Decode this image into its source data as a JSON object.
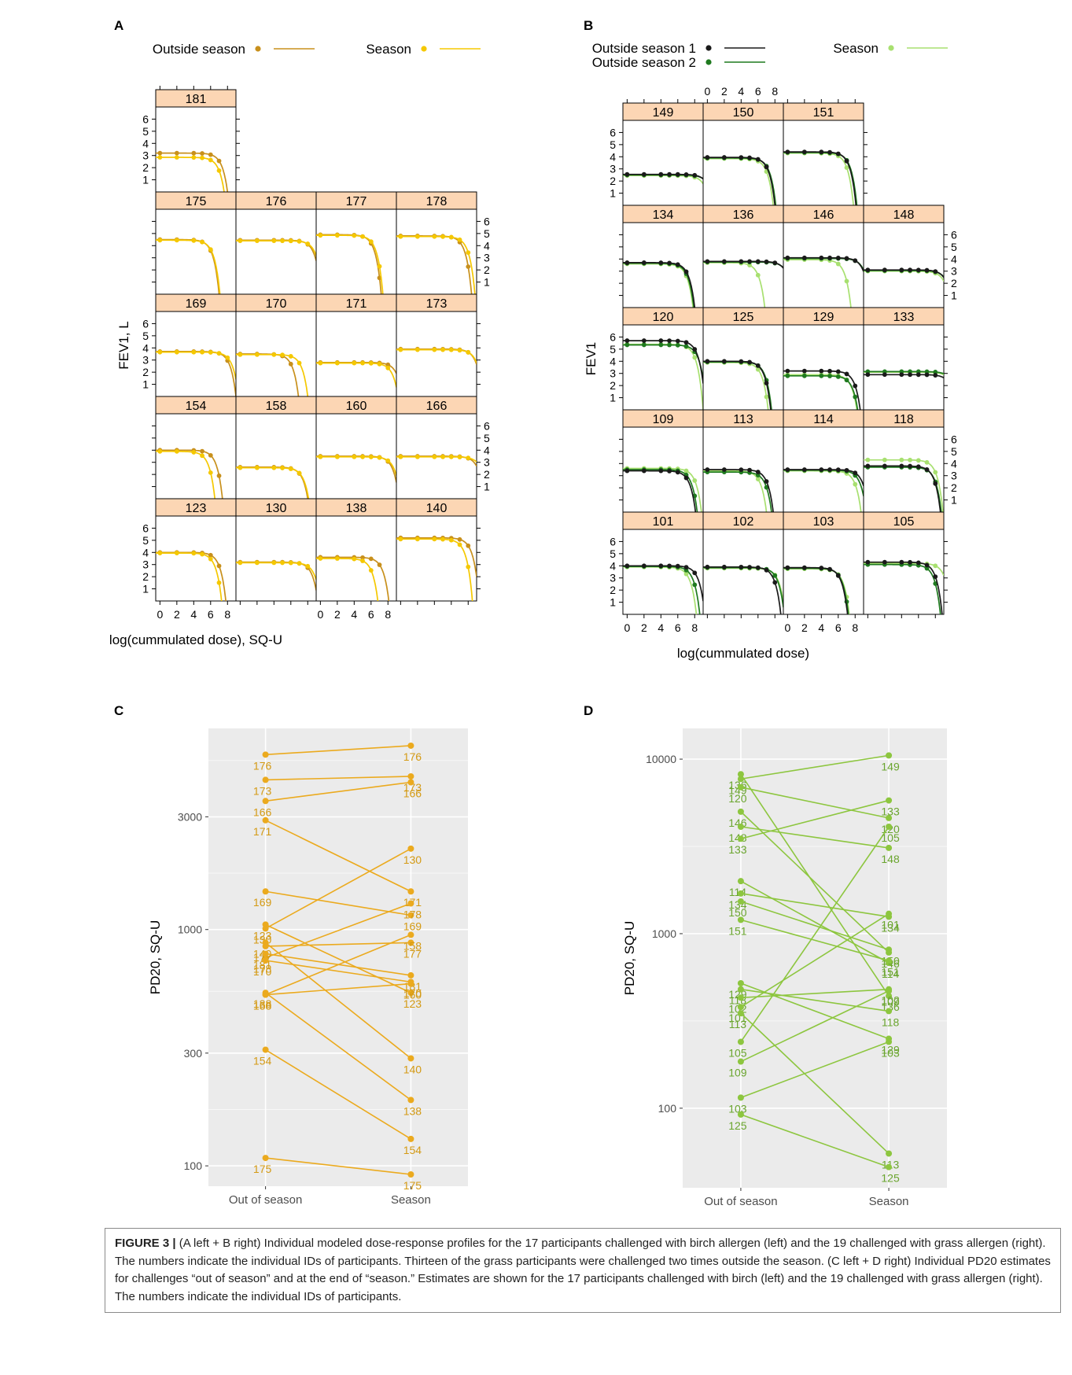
{
  "panels": {
    "A": {
      "letter": "A",
      "legend": [
        {
          "label": "Outside season",
          "color": "#c8901c"
        },
        {
          "label": "Season",
          "color": "#f5c800"
        }
      ],
      "ylabel": "FEV1, L",
      "xlabel": "log(cummulated dose), SQ-U",
      "y_ticks": [
        "1",
        "2",
        "3",
        "4",
        "5",
        "6"
      ],
      "x_ticks": [
        "0",
        "2",
        "4",
        "6",
        "8"
      ],
      "rows": [
        [
          "181"
        ],
        [
          "175",
          "176",
          "177",
          "178"
        ],
        [
          "169",
          "170",
          "171",
          "173"
        ],
        [
          "154",
          "158",
          "160",
          "166"
        ],
        [
          "123",
          "130",
          "138",
          "140"
        ]
      ]
    },
    "B": {
      "letter": "B",
      "legend": [
        {
          "label": "Outside season 1",
          "color": "#1a1a1a"
        },
        {
          "label": "Outside season 2",
          "color": "#1f7a1f"
        },
        {
          "label": "Season",
          "color": "#a8e070"
        }
      ],
      "ylabel": "FEV1",
      "xlabel": "log(cummulated dose)",
      "y_ticks": [
        "1",
        "2",
        "3",
        "4",
        "5",
        "6"
      ],
      "x_ticks": [
        "0",
        "2",
        "4",
        "6",
        "8"
      ],
      "rows": [
        [
          "149",
          "150",
          "151"
        ],
        [
          "134",
          "136",
          "146",
          "148"
        ],
        [
          "120",
          "125",
          "129",
          "133"
        ],
        [
          "109",
          "113",
          "114",
          "118"
        ],
        [
          "101",
          "102",
          "103",
          "105"
        ]
      ]
    },
    "C": {
      "letter": "C"
    },
    "D": {
      "letter": "D"
    }
  },
  "chart_data": [
    {
      "panel": "A",
      "type": "line",
      "title": "",
      "xlabel": "log(cummulated dose), SQ-U",
      "ylabel": "FEV1, L",
      "xlim": [
        -0.5,
        9
      ],
      "ylim": [
        0,
        7
      ],
      "series_names": [
        "Outside season",
        "Season"
      ],
      "facets": [
        {
          "id": "181",
          "out": {
            "base": 3.2,
            "end": 8.0
          },
          "season": {
            "base": 2.85,
            "end": 7.6
          }
        },
        {
          "id": "175",
          "out": {
            "base": 4.5,
            "end": 7.0
          },
          "season": {
            "base": 4.45,
            "end": 7.1
          }
        },
        {
          "id": "176",
          "out": {
            "base": 4.45,
            "end": 9.6
          },
          "season": {
            "base": 4.4,
            "end": 9.8
          }
        },
        {
          "id": "177",
          "out": {
            "base": 4.9,
            "end": 7.2
          },
          "season": {
            "base": 4.85,
            "end": 7.4
          }
        },
        {
          "id": "178",
          "out": {
            "base": 4.8,
            "end": 8.4
          },
          "season": {
            "base": 4.75,
            "end": 8.8
          }
        },
        {
          "id": "169",
          "out": {
            "base": 3.7,
            "end": 9.0
          },
          "season": {
            "base": 3.65,
            "end": 9.3
          }
        },
        {
          "id": "170",
          "out": {
            "base": 3.5,
            "end": 6.9
          },
          "season": {
            "base": 3.45,
            "end": 8.0
          }
        },
        {
          "id": "171",
          "out": {
            "base": 2.8,
            "end": 9.7
          },
          "season": {
            "base": 2.75,
            "end": 9.2
          }
        },
        {
          "id": "173",
          "out": {
            "base": 3.9,
            "end": 9.7
          },
          "season": {
            "base": 3.85,
            "end": 9.8
          }
        },
        {
          "id": "154",
          "out": {
            "base": 4.0,
            "end": 7.4
          },
          "season": {
            "base": 3.9,
            "end": 6.5
          }
        },
        {
          "id": "158",
          "out": {
            "base": 2.6,
            "end": 8.0
          },
          "season": {
            "base": 2.55,
            "end": 8.1
          }
        },
        {
          "id": "160",
          "out": {
            "base": 3.5,
            "end": 9.3
          },
          "season": {
            "base": 3.45,
            "end": 9.5
          }
        },
        {
          "id": "166",
          "out": {
            "base": 3.5,
            "end": 9.9
          },
          "season": {
            "base": 3.45,
            "end": 10.3
          }
        },
        {
          "id": "123",
          "out": {
            "base": 4.0,
            "end": 7.8
          },
          "season": {
            "base": 3.95,
            "end": 7.3
          }
        },
        {
          "id": "130",
          "out": {
            "base": 3.2,
            "end": 9.2
          },
          "season": {
            "base": 3.15,
            "end": 9.5
          }
        },
        {
          "id": "138",
          "out": {
            "base": 3.6,
            "end": 8.1
          },
          "season": {
            "base": 3.5,
            "end": 6.8
          }
        },
        {
          "id": "140",
          "out": {
            "base": 5.2,
            "end": 9.3
          },
          "season": {
            "base": 5.1,
            "end": 8.5
          }
        }
      ]
    },
    {
      "panel": "B",
      "type": "line",
      "title": "",
      "xlabel": "log(cummulated dose)",
      "ylabel": "FEV1",
      "xlim": [
        -0.5,
        9
      ],
      "ylim": [
        0,
        7
      ],
      "series_names": [
        "Outside season 1",
        "Outside season 2",
        "Season"
      ],
      "facets": [
        {
          "id": "149",
          "out1": {
            "base": 2.55,
            "end": 10.2
          },
          "out2": {
            "base": 2.5,
            "end": 10.3
          },
          "season": {
            "base": 2.45,
            "end": 9.8
          }
        },
        {
          "id": "150",
          "out1": {
            "base": 3.95,
            "end": 8.0
          },
          "out2": {
            "base": 3.9,
            "end": 8.1
          },
          "season": {
            "base": 3.85,
            "end": 7.8
          }
        },
        {
          "id": "151",
          "out1": {
            "base": 4.4,
            "end": 8.1
          },
          "out2": {
            "base": 4.35,
            "end": 8.2
          },
          "season": {
            "base": 4.3,
            "end": 7.8
          }
        },
        {
          "id": "134",
          "out1": {
            "base": 3.7,
            "end": 8.0
          },
          "out2": {
            "base": 3.65,
            "end": 7.9
          },
          "season": {
            "base": 3.6,
            "end": 7.8
          }
        },
        {
          "id": "136",
          "out1": {
            "base": 3.8,
            "end": 10.2
          },
          "out2": {
            "base": 3.75,
            "end": 10.3
          },
          "season": {
            "base": 3.7,
            "end": 6.8
          }
        },
        {
          "id": "146",
          "out1": {
            "base": 4.1,
            "end": 9.8
          },
          "out2": {
            "base": 4.05,
            "end": 9.9
          },
          "season": {
            "base": 3.95,
            "end": 7.5
          }
        },
        {
          "id": "148",
          "out1": {
            "base": 3.1,
            "end": 10.0
          },
          "out2": {
            "base": 3.05,
            "end": 10.1
          },
          "season": {
            "base": 3.0,
            "end": 9.8
          }
        },
        {
          "id": "120",
          "out1": {
            "base": 5.7,
            "end": 9.3
          },
          "out2": {
            "base": 5.35,
            "end": 9.4
          },
          "season": {
            "base": 5.4,
            "end": 9.0
          }
        },
        {
          "id": "125",
          "out1": {
            "base": 4.0,
            "end": 7.5
          },
          "out2": {
            "base": 3.95,
            "end": 7.6
          },
          "season": {
            "base": 3.9,
            "end": 7.2
          }
        },
        {
          "id": "129",
          "out1": {
            "base": 3.2,
            "end": 8.6
          },
          "out2": {
            "base": 2.8,
            "end": 8.3
          },
          "season": {
            "base": 2.9,
            "end": 8.2
          }
        },
        {
          "id": "133",
          "out1": {
            "base": 2.9,
            "end": 10.5
          },
          "out2": {
            "base": 3.15,
            "end": 10.8
          },
          "season": {
            "base": 3.1,
            "end": 10.7
          }
        },
        {
          "id": "109",
          "out1": {
            "base": 3.4,
            "end": 8.1
          },
          "out2": {
            "base": 3.5,
            "end": 8.3
          },
          "season": {
            "base": 3.6,
            "end": 8.8
          }
        },
        {
          "id": "113",
          "out1": {
            "base": 3.5,
            "end": 7.8
          },
          "out2": {
            "base": 3.3,
            "end": 7.6
          },
          "season": {
            "base": 3.4,
            "end": 7.0
          }
        },
        {
          "id": "114",
          "out1": {
            "base": 3.5,
            "end": 9.6
          },
          "out2": {
            "base": 3.45,
            "end": 9.3
          },
          "season": {
            "base": 3.4,
            "end": 8.7
          }
        },
        {
          "id": "118",
          "out1": {
            "base": 3.8,
            "end": 8.6
          },
          "out2": {
            "base": 3.7,
            "end": 8.7
          },
          "season": {
            "base": 4.3,
            "end": 8.9
          }
        },
        {
          "id": "101",
          "out1": {
            "base": 4.0,
            "end": 9.2
          },
          "out2": {
            "base": 3.95,
            "end": 8.6
          },
          "season": {
            "base": 3.9,
            "end": 8.2
          }
        },
        {
          "id": "102",
          "out1": {
            "base": 3.9,
            "end": 8.7
          },
          "out2": {
            "base": 3.85,
            "end": 9.1
          },
          "season": {
            "base": 3.8,
            "end": 9.2
          }
        },
        {
          "id": "103",
          "out1": {
            "base": 3.85,
            "end": 7.1
          },
          "out2": {
            "base": 3.8,
            "end": 7.2
          },
          "season": {
            "base": 3.75,
            "end": 7.3
          }
        },
        {
          "id": "105",
          "out1": {
            "base": 4.3,
            "end": 8.8
          },
          "out2": {
            "base": 4.1,
            "end": 8.6
          },
          "season": {
            "base": 4.2,
            "end": 9.9
          }
        }
      ]
    },
    {
      "panel": "C",
      "type": "line",
      "title": "",
      "xlabel": "",
      "ylabel": "PD20, SQ-U",
      "categories": [
        "Out of season",
        "Season"
      ],
      "y_scale": "log",
      "ylim": [
        82,
        7100
      ],
      "y_ticks": [
        100,
        300,
        1000,
        3000
      ],
      "color": "#ebaa1e",
      "subjects": [
        {
          "id": "176",
          "out": 5500,
          "season": 6000
        },
        {
          "id": "173",
          "out": 4300,
          "season": 4450
        },
        {
          "id": "166",
          "out": 3500,
          "season": 4200
        },
        {
          "id": "171",
          "out": 2900,
          "season": 1450
        },
        {
          "id": "130",
          "out": 1010,
          "season": 2200
        },
        {
          "id": "169",
          "out": 1450,
          "season": 1150
        },
        {
          "id": "123",
          "out": 1050,
          "season": 540
        },
        {
          "id": "178",
          "out": 760,
          "season": 1290
        },
        {
          "id": "177",
          "out": 850,
          "season": 880
        },
        {
          "id": "140",
          "out": 880,
          "season": 285
        },
        {
          "id": "181",
          "out": 790,
          "season": 640
        },
        {
          "id": "170",
          "out": 740,
          "season": 600
        },
        {
          "id": "158",
          "out": 530,
          "season": 950
        },
        {
          "id": "160",
          "out": 530,
          "season": 590
        },
        {
          "id": "138",
          "out": 540,
          "season": 190
        },
        {
          "id": "154",
          "out": 310,
          "season": 130
        },
        {
          "id": "175",
          "out": 108,
          "season": 92
        }
      ]
    },
    {
      "panel": "D",
      "type": "line",
      "title": "",
      "xlabel": "",
      "ylabel": "PD20, SQ-U",
      "categories": [
        "Out of season",
        "Season"
      ],
      "y_scale": "log",
      "ylim": [
        35,
        15000
      ],
      "y_ticks": [
        100,
        1000,
        10000
      ],
      "color": "#8dc63f",
      "subjects": [
        {
          "id": "149",
          "out": 7700,
          "season": 10500
        },
        {
          "id": "136",
          "out": 8200,
          "season": 440
        },
        {
          "id": "120",
          "out": 6900,
          "season": 4600
        },
        {
          "id": "146",
          "out": 5000,
          "season": 780
        },
        {
          "id": "148",
          "out": 4100,
          "season": 3100
        },
        {
          "id": "133",
          "out": 3500,
          "season": 5800
        },
        {
          "id": "114",
          "out": 2000,
          "season": 680
        },
        {
          "id": "134",
          "out": 1700,
          "season": 1250
        },
        {
          "id": "150",
          "out": 1530,
          "season": 810
        },
        {
          "id": "151",
          "out": 1200,
          "season": 700
        },
        {
          "id": "129",
          "out": 520,
          "season": 250
        },
        {
          "id": "118",
          "out": 480,
          "season": 360
        },
        {
          "id": "102",
          "out": 430,
          "season": 480
        },
        {
          "id": "101",
          "out": 380,
          "season": 1300
        },
        {
          "id": "113",
          "out": 350,
          "season": 55
        },
        {
          "id": "105",
          "out": 240,
          "season": 4100
        },
        {
          "id": "109",
          "out": 185,
          "season": 470
        },
        {
          "id": "103",
          "out": 115,
          "season": 240
        },
        {
          "id": "125",
          "out": 92,
          "season": 46
        }
      ]
    }
  ],
  "caption": {
    "lead": "FIGURE 3 |",
    "text": "(A left + B right) Individual modeled dose-response profiles for the 17 participants challenged with birch allergen (left) and the 19 challenged with grass allergen (right). The numbers indicate the individual IDs of participants. Thirteen of the grass participants were challenged two times outside the season. (C left + D right) Individual PD20 estimates for challenges “out of season” and at the end of “season.” Estimates are shown for the 17 participants challenged with birch (left) and the 19 challenged with grass allergen (right). The numbers indicate the individual IDs of participants."
  }
}
